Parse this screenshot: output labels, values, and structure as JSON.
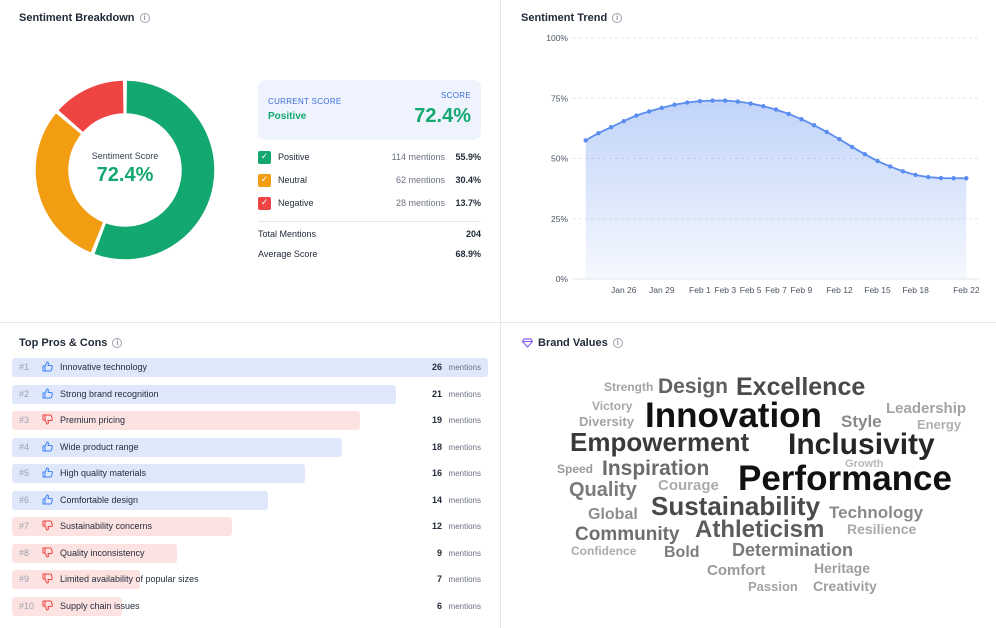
{
  "breakdown": {
    "title": "Sentiment Breakdown",
    "center_label": "Sentiment Score",
    "center_value": "72.4%",
    "current_score_label": "CURRENT SCORE",
    "current_score_value": "Positive",
    "score_label": "SCORE",
    "score_value": "72.4%",
    "legend": [
      {
        "name": "Positive",
        "mentions": "114 mentions",
        "pct": "55.9%",
        "color": "#12a870",
        "share": 55.9
      },
      {
        "name": "Neutral",
        "mentions": "62 mentions",
        "pct": "30.4%",
        "color": "#f29d12",
        "share": 30.4
      },
      {
        "name": "Negative",
        "mentions": "28 mentions",
        "pct": "13.7%",
        "color": "#ef4444",
        "share": 13.7
      }
    ],
    "total_label": "Total Mentions",
    "total_value": "204",
    "avg_label": "Average Score",
    "avg_value": "68.9%"
  },
  "trend": {
    "title": "Sentiment Trend",
    "chart_data": {
      "type": "area",
      "title": "Sentiment Trend",
      "ylim": [
        0,
        100
      ],
      "y_ticks": [
        "0%",
        "25%",
        "50%",
        "75%",
        "100%"
      ],
      "x_ticks": [
        {
          "label": "Jan 26",
          "day": 4
        },
        {
          "label": "Jan 29",
          "day": 7
        },
        {
          "label": "Feb 1",
          "day": 10
        },
        {
          "label": "Feb 3",
          "day": 12
        },
        {
          "label": "Feb 5",
          "day": 14
        },
        {
          "label": "Feb 7",
          "day": 16
        },
        {
          "label": "Feb 9",
          "day": 18
        },
        {
          "label": "Feb 12",
          "day": 21
        },
        {
          "label": "Feb 15",
          "day": 24
        },
        {
          "label": "Feb 18",
          "day": 27
        },
        {
          "label": "Feb 22",
          "day": 31
        }
      ],
      "x_range": [
        0,
        32
      ],
      "values": [
        57.5,
        60.5,
        63,
        65.5,
        67.8,
        69.5,
        71,
        72.3,
        73.2,
        73.8,
        74,
        74,
        73.6,
        72.8,
        71.7,
        70.3,
        68.5,
        66.3,
        63.8,
        61,
        58,
        54.8,
        51.8,
        49,
        46.7,
        44.7,
        43.2,
        42.3,
        41.9,
        41.8,
        41.8
      ]
    },
    "color": "#5b8def"
  },
  "proscons": {
    "title": "Top Pros & Cons",
    "unit": "mentions",
    "max": 26,
    "items": [
      {
        "rank": "#1",
        "label": "Innovative technology",
        "count": 26,
        "type": "pro"
      },
      {
        "rank": "#2",
        "label": "Strong brand recognition",
        "count": 21,
        "type": "pro"
      },
      {
        "rank": "#3",
        "label": "Premium pricing",
        "count": 19,
        "type": "con"
      },
      {
        "rank": "#4",
        "label": "Wide product range",
        "count": 18,
        "type": "pro"
      },
      {
        "rank": "#5",
        "label": "High quality materials",
        "count": 16,
        "type": "pro"
      },
      {
        "rank": "#6",
        "label": "Comfortable design",
        "count": 14,
        "type": "pro"
      },
      {
        "rank": "#7",
        "label": "Sustainability concerns",
        "count": 12,
        "type": "con"
      },
      {
        "rank": "#8",
        "label": "Quality inconsistency",
        "count": 9,
        "type": "con"
      },
      {
        "rank": "#9",
        "label": "Limited availability of popular sizes",
        "count": 7,
        "type": "con"
      },
      {
        "rank": "#10",
        "label": "Supply chain issues",
        "count": 6,
        "type": "con"
      }
    ],
    "colors": {
      "pro_bar": "#dfe8fb",
      "con_bar": "#fde2e2",
      "pro_icon": "#3b82f6",
      "con_icon": "#ef4444"
    }
  },
  "brand": {
    "title": "Brand Values",
    "words": [
      "Strength",
      "Design",
      "Excellence",
      "Victory",
      "Innovation",
      "Leadership",
      "Diversity",
      "Style",
      "Energy",
      "Empowerment",
      "Inclusivity",
      "Speed",
      "Inspiration",
      "Growth",
      "Performance",
      "Quality",
      "Courage",
      "Sustainability",
      "Global",
      "Technology",
      "Community",
      "Resilience",
      "Athleticism",
      "Confidence",
      "Bold",
      "Determination",
      "Heritage",
      "Comfort",
      "Passion",
      "Creativity"
    ]
  }
}
